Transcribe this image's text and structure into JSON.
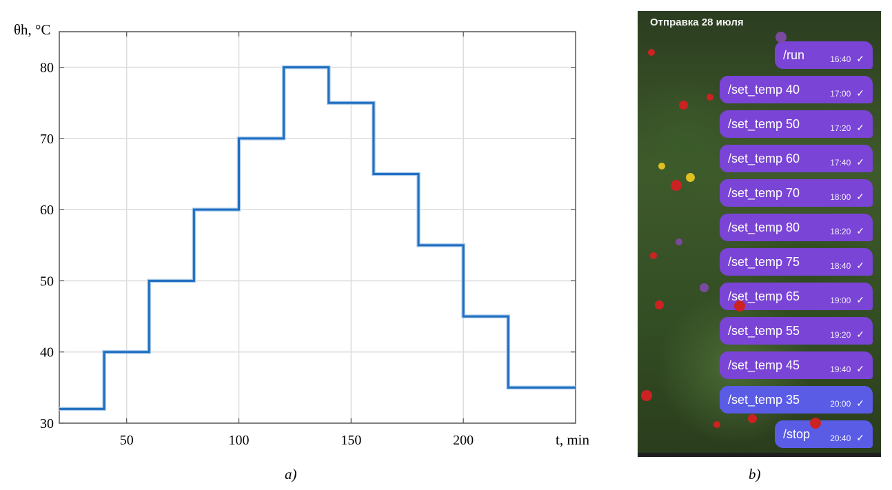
{
  "chart_data": {
    "type": "line",
    "step": true,
    "ylabel": "θh, °C",
    "xlabel": "t, min",
    "xlim": [
      20,
      250
    ],
    "ylim": [
      30,
      85
    ],
    "x_ticks": [
      50,
      100,
      150,
      200
    ],
    "y_ticks": [
      30,
      40,
      50,
      60,
      70,
      80
    ],
    "grid": true,
    "series": [
      {
        "color": "#1f6fc0",
        "x": [
          20,
          40,
          40,
          60,
          60,
          80,
          80,
          100,
          100,
          120,
          120,
          140,
          140,
          160,
          160,
          180,
          180,
          200,
          200,
          220,
          220,
          250
        ],
        "y": [
          32,
          32,
          40,
          40,
          50,
          50,
          60,
          60,
          70,
          70,
          80,
          80,
          75,
          75,
          65,
          65,
          55,
          55,
          45,
          45,
          35,
          35
        ]
      }
    ]
  },
  "captions": {
    "a": "a)",
    "b": "b)"
  },
  "chat": {
    "date_label": "Отправка 28 июля",
    "check_icon": "check-icon",
    "colors": {
      "purple": "#7a44d6",
      "blue": "#5a5ce6"
    },
    "messages": [
      {
        "text": "/run",
        "time": "16:40"
      },
      {
        "text": "/set_temp 40",
        "time": "17:00"
      },
      {
        "text": "/set_temp 50",
        "time": "17:20"
      },
      {
        "text": "/set_temp 60",
        "time": "17:40"
      },
      {
        "text": "/set_temp 70",
        "time": "18:00"
      },
      {
        "text": "/set_temp 80",
        "time": "18:20"
      },
      {
        "text": "/set_temp 75",
        "time": "18:40"
      },
      {
        "text": "/set_temp 65",
        "time": "19:00"
      },
      {
        "text": "/set_temp 55",
        "time": "19:20"
      },
      {
        "text": "/set_temp 45",
        "time": "19:40"
      },
      {
        "text": "/set_temp 35",
        "time": "20:00"
      },
      {
        "text": "/stop",
        "time": "20:40"
      }
    ]
  }
}
